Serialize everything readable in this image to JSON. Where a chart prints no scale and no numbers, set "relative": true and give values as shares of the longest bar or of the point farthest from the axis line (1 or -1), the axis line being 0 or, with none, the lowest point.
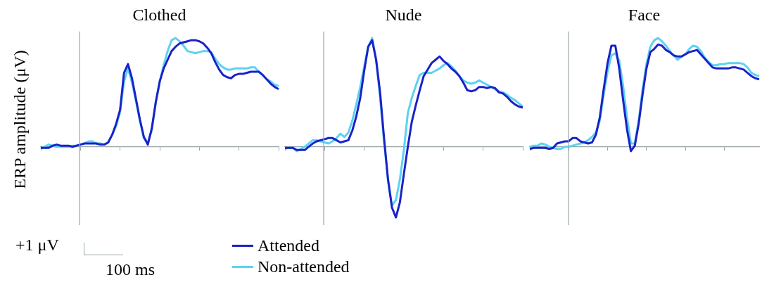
{
  "chart_data": [
    {
      "type": "line",
      "title": "Clothed",
      "ylabel": "ERP amplitude (μV)",
      "relative": true,
      "legend": "bottom",
      "annotations": [
        "+1 μV",
        "100 ms"
      ],
      "categories": [
        null,
        null,
        null,
        null,
        null,
        null,
        null,
        null,
        null,
        null,
        null,
        null,
        null,
        null,
        null,
        null,
        null,
        null,
        null,
        null,
        null,
        null,
        null,
        null,
        null,
        null,
        null,
        null,
        null,
        null,
        null,
        null,
        null,
        null,
        null,
        null,
        null,
        null,
        null,
        null,
        null,
        null,
        null,
        null,
        null,
        null,
        null,
        null,
        null,
        null,
        null,
        null,
        null,
        null,
        null,
        null,
        null,
        null,
        null,
        null,
        null
      ],
      "series": [
        {
          "name": "Attended",
          "color": "#1a22c8",
          "values": [
            -0.01,
            -0.01,
            -0.01,
            0.01,
            0.02,
            0.01,
            0.01,
            0.01,
            0,
            0.01,
            0.02,
            0.03,
            0.03,
            0.03,
            0.03,
            0.02,
            0.02,
            0.04,
            0.11,
            0.21,
            0.34,
            0.68,
            0.76,
            0.63,
            0.44,
            0.25,
            0.09,
            0.02,
            0.17,
            0.41,
            0.6,
            0.72,
            0.8,
            0.88,
            0.92,
            0.95,
            0.96,
            0.97,
            0.98,
            0.98,
            0.97,
            0.95,
            0.91,
            0.86,
            0.78,
            0.71,
            0.66,
            0.64,
            0.63,
            0.66,
            0.67,
            0.67,
            0.68,
            0.69,
            0.69,
            0.69,
            0.66,
            0.62,
            0.58,
            0.55,
            0.53
          ]
        },
        {
          "name": "Non-attended",
          "color": "#5cd2f2",
          "values": [
            -0.02,
            0,
            0.02,
            0.01,
            0,
            0,
            0,
            0,
            0.01,
            0.01,
            0.02,
            0.03,
            0.05,
            0.05,
            0.03,
            0.03,
            0.02,
            0.04,
            0.11,
            0.19,
            0.32,
            0.6,
            0.72,
            0.59,
            0.42,
            0.24,
            0.08,
            0.04,
            0.15,
            0.4,
            0.6,
            0.75,
            0.88,
            0.98,
            1.0,
            0.97,
            0.93,
            0.88,
            0.87,
            0.86,
            0.87,
            0.88,
            0.88,
            0.87,
            0.81,
            0.76,
            0.73,
            0.71,
            0.71,
            0.72,
            0.72,
            0.72,
            0.72,
            0.73,
            0.73,
            0.69,
            0.66,
            0.62,
            0.6,
            0.57,
            0.56
          ]
        }
      ]
    },
    {
      "type": "line",
      "title": "Nude",
      "relative": true,
      "categories": [
        null,
        null,
        null,
        null,
        null,
        null,
        null,
        null,
        null,
        null,
        null,
        null,
        null,
        null,
        null,
        null,
        null,
        null,
        null,
        null,
        null,
        null,
        null,
        null,
        null,
        null,
        null,
        null,
        null,
        null,
        null,
        null,
        null,
        null,
        null,
        null,
        null,
        null,
        null,
        null,
        null,
        null,
        null,
        null,
        null,
        null,
        null,
        null,
        null,
        null,
        null,
        null,
        null,
        null,
        null,
        null,
        null,
        null,
        null,
        null,
        null
      ],
      "series": [
        {
          "color": "#1a22c8",
          "values": [
            -0.01,
            -0.01,
            -0.01,
            -0.03,
            -0.03,
            -0.03,
            0,
            0.03,
            0.05,
            0.06,
            0.07,
            0.08,
            0.08,
            0.06,
            0.04,
            0.05,
            0.06,
            0.15,
            0.28,
            0.45,
            0.7,
            0.92,
            0.98,
            0.8,
            0.5,
            0.08,
            -0.3,
            -0.56,
            -0.65,
            -0.51,
            -0.25,
            0,
            0.23,
            0.38,
            0.52,
            0.65,
            0.71,
            0.77,
            0.8,
            0.83,
            0.79,
            0.76,
            0.72,
            0.69,
            0.65,
            0.59,
            0.52,
            0.51,
            0.52,
            0.55,
            0.55,
            0.54,
            0.55,
            0.54,
            0.5,
            0.49,
            0.46,
            0.42,
            0.39,
            0.37,
            0.36
          ]
        },
        {
          "color": "#5cd2f2",
          "values": [
            -0.02,
            -0.01,
            -0.01,
            -0.04,
            -0.02,
            0,
            0.03,
            0.06,
            0.06,
            0.05,
            0.04,
            0.03,
            0.05,
            0.08,
            0.12,
            0.09,
            0.13,
            0.24,
            0.39,
            0.55,
            0.74,
            0.92,
            1.0,
            0.8,
            0.45,
            0.05,
            -0.31,
            -0.54,
            -0.49,
            -0.3,
            -0.03,
            0.31,
            0.45,
            0.56,
            0.66,
            0.68,
            0.68,
            0.68,
            0.7,
            0.72,
            0.75,
            0.77,
            0.74,
            0.7,
            0.65,
            0.61,
            0.59,
            0.58,
            0.59,
            0.61,
            0.59,
            0.57,
            0.55,
            0.53,
            0.51,
            0.5,
            0.48,
            0.45,
            0.43,
            0.4,
            0.37
          ]
        }
      ]
    },
    {
      "type": "line",
      "title": "Face",
      "relative": true,
      "categories": [
        null,
        null,
        null,
        null,
        null,
        null,
        null,
        null,
        null,
        null,
        null,
        null,
        null,
        null,
        null,
        null,
        null,
        null,
        null,
        null,
        null,
        null,
        null,
        null,
        null,
        null,
        null,
        null,
        null,
        null,
        null,
        null,
        null,
        null,
        null,
        null,
        null,
        null,
        null,
        null,
        null,
        null,
        null,
        null,
        null,
        null,
        null,
        null,
        null,
        null,
        null,
        null,
        null,
        null,
        null,
        null,
        null,
        null,
        null,
        null
      ],
      "series": [
        {
          "color": "#1a22c8",
          "values": [
            -0.02,
            -0.01,
            -0.01,
            -0.01,
            -0.01,
            -0.02,
            -0.01,
            0.03,
            0.04,
            0.05,
            0.05,
            0.08,
            0.08,
            0.05,
            0.04,
            0.03,
            0.04,
            0.11,
            0.27,
            0.53,
            0.77,
            0.93,
            0.93,
            0.72,
            0.43,
            0.16,
            -0.04,
            0.01,
            0.21,
            0.48,
            0.72,
            0.87,
            0.9,
            0.94,
            0.93,
            0.89,
            0.87,
            0.84,
            0.83,
            0.83,
            0.85,
            0.87,
            0.88,
            0.89,
            0.85,
            0.81,
            0.77,
            0.73,
            0.72,
            0.72,
            0.72,
            0.72,
            0.73,
            0.73,
            0.72,
            0.71,
            0.68,
            0.65,
            0.63,
            0.62
          ]
        },
        {
          "color": "#5cd2f2",
          "values": [
            0,
            0.01,
            0.01,
            0.03,
            0.02,
            0,
            -0.01,
            -0.02,
            -0.02,
            0,
            0,
            0.01,
            0.02,
            0.03,
            0.04,
            0.06,
            0.09,
            0.13,
            0.24,
            0.48,
            0.69,
            0.84,
            0.86,
            0.79,
            0.56,
            0.27,
            0.03,
            0.03,
            0.24,
            0.53,
            0.76,
            0.92,
            0.98,
            1.0,
            0.97,
            0.93,
            0.88,
            0.84,
            0.8,
            0.83,
            0.85,
            0.9,
            0.93,
            0.92,
            0.88,
            0.82,
            0.78,
            0.75,
            0.75,
            0.76,
            0.76,
            0.77,
            0.77,
            0.77,
            0.77,
            0.76,
            0.73,
            0.68,
            0.66,
            0.65
          ]
        }
      ]
    }
  ]
}
